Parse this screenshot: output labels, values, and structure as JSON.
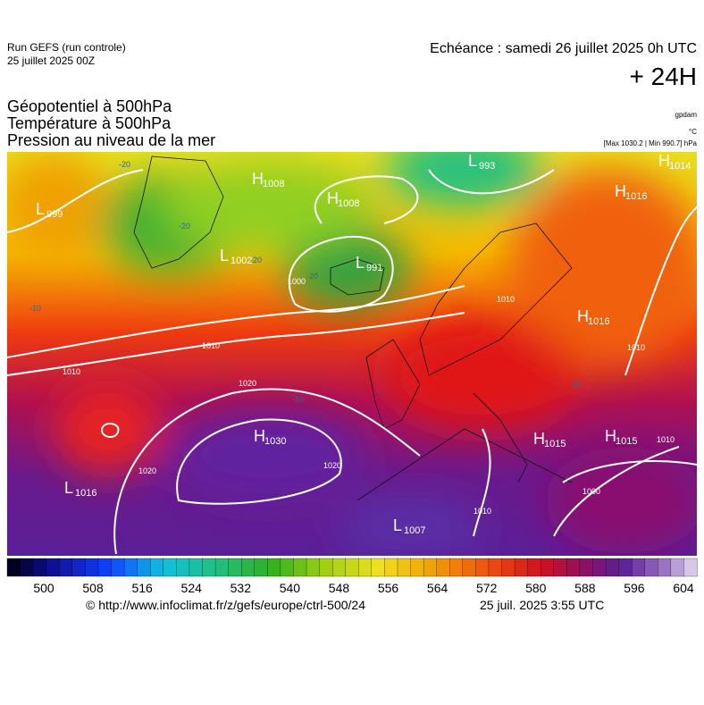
{
  "header": {
    "run": "Run GEFS (run controle)",
    "run_date": "25 juillet 2025 00Z",
    "valid": "Echéance : samedi 26 juillet 2025 0h UTC",
    "lead": "+ 24H"
  },
  "titles": [
    "Géopotentiel à 500hPa",
    "Température à 500hPa",
    "Pression au niveau de la mer"
  ],
  "units": [
    "gpdam",
    "°C",
    "[Max 1030.2 | Min 990.7] hPa"
  ],
  "centers": [
    {
      "letter": "L",
      "value": 999
    },
    {
      "letter": "H",
      "value": 1008
    },
    {
      "letter": "H",
      "value": 1008
    },
    {
      "letter": "L",
      "value": 1002
    },
    {
      "letter": "L",
      "value": 991
    },
    {
      "letter": "L",
      "value": 993
    },
    {
      "letter": "H",
      "value": 1014
    },
    {
      "letter": "H",
      "value": 1016
    },
    {
      "letter": "H",
      "value": 1016
    },
    {
      "letter": "H",
      "value": 1030
    },
    {
      "letter": "L",
      "value": 1016
    },
    {
      "letter": "H",
      "value": 1015
    },
    {
      "letter": "H",
      "value": 1015
    },
    {
      "letter": "L",
      "value": 1007
    }
  ],
  "contour_labels": [
    1010,
    1010,
    1020,
    1020,
    1020,
    1000,
    1010,
    1010,
    1010,
    1000,
    1010,
    -20,
    -20,
    -20,
    -20,
    -10,
    -10,
    -10
  ],
  "colorbar": {
    "labels": [
      500,
      508,
      516,
      524,
      532,
      540,
      548,
      556,
      564,
      572,
      580,
      588,
      596,
      604
    ]
  },
  "footer": {
    "source": "© http://www.infoclimat.fr/z/gefs/europe/ctrl-500/24",
    "issued": "25 juil. 2025  3:55 UTC"
  }
}
